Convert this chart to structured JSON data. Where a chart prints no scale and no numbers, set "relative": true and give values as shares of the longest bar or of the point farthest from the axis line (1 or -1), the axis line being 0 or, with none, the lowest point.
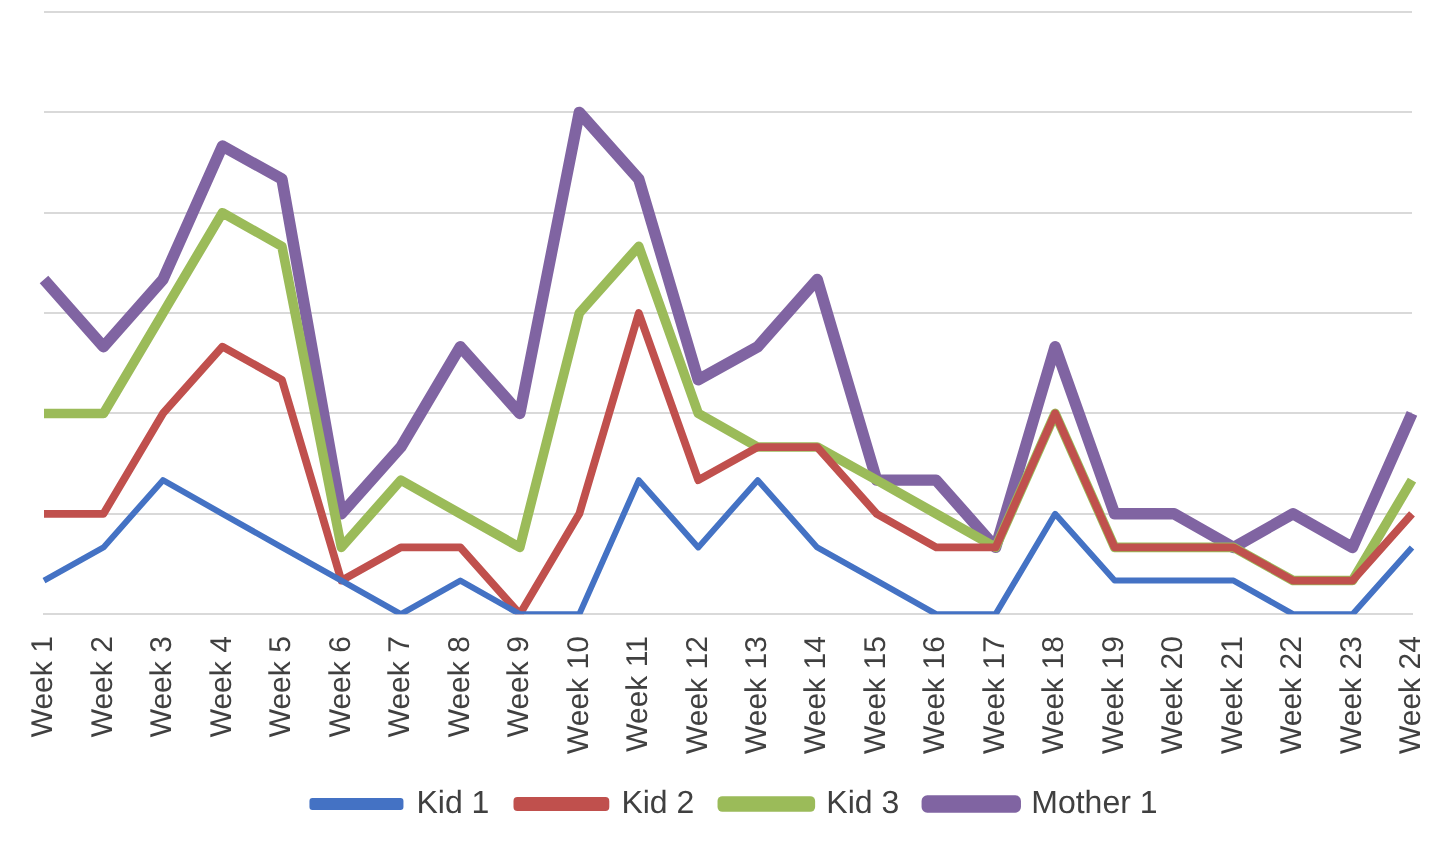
{
  "chart_data": {
    "type": "line",
    "relative": true,
    "grid": "y",
    "legend": "bottom",
    "marker": "none",
    "line_style": "solid",
    "categories": [
      "Week 1",
      "Week 2",
      "Week 3",
      "Week 4",
      "Week 5",
      "Week 6",
      "Week 7",
      "Week 8",
      "Week 9",
      "Week 10",
      "Week 11",
      "Week 12",
      "Week 13",
      "Week 14",
      "Week 15",
      "Week 16",
      "Week 17",
      "Week 18",
      "Week 19",
      "Week 20",
      "Week 21",
      "Week 22",
      "Week 23",
      "Week 24"
    ],
    "series": [
      {
        "name": "Kid 1",
        "color": "#4472c4",
        "values": [
          0.067,
          0.133,
          0.267,
          0.2,
          0.133,
          0.067,
          0,
          0.067,
          0,
          0,
          0.267,
          0.133,
          0.267,
          0.133,
          0.067,
          0,
          0,
          0.2,
          0.067,
          0.067,
          0.067,
          0,
          0,
          0.133
        ]
      },
      {
        "name": "Kid 2",
        "color": "#c0504d",
        "values": [
          0.2,
          0.2,
          0.4,
          0.533,
          0.467,
          0.067,
          0.133,
          0.133,
          0,
          0.2,
          0.6,
          0.267,
          0.333,
          0.333,
          0.2,
          0.133,
          0.133,
          0.4,
          0.133,
          0.133,
          0.133,
          0.067,
          0.067,
          0.2
        ]
      },
      {
        "name": "Kid 3",
        "color": "#9bbb59",
        "values": [
          0.4,
          0.4,
          0.6,
          0.8,
          0.733,
          0.133,
          0.267,
          0.2,
          0.133,
          0.6,
          0.733,
          0.4,
          0.333,
          0.333,
          0.267,
          0.2,
          0.133,
          0.4,
          0.133,
          0.133,
          0.133,
          0.067,
          0.067,
          0.267
        ]
      },
      {
        "name": "Mother 1",
        "color": "#8064a2",
        "values": [
          0.667,
          0.533,
          0.667,
          0.933,
          0.867,
          0.2,
          0.333,
          0.533,
          0.4,
          1,
          0.867,
          0.467,
          0.533,
          0.667,
          0.267,
          0.267,
          0.133,
          0.533,
          0.2,
          0.2,
          0.133,
          0.2,
          0.133,
          0.4
        ]
      }
    ]
  }
}
